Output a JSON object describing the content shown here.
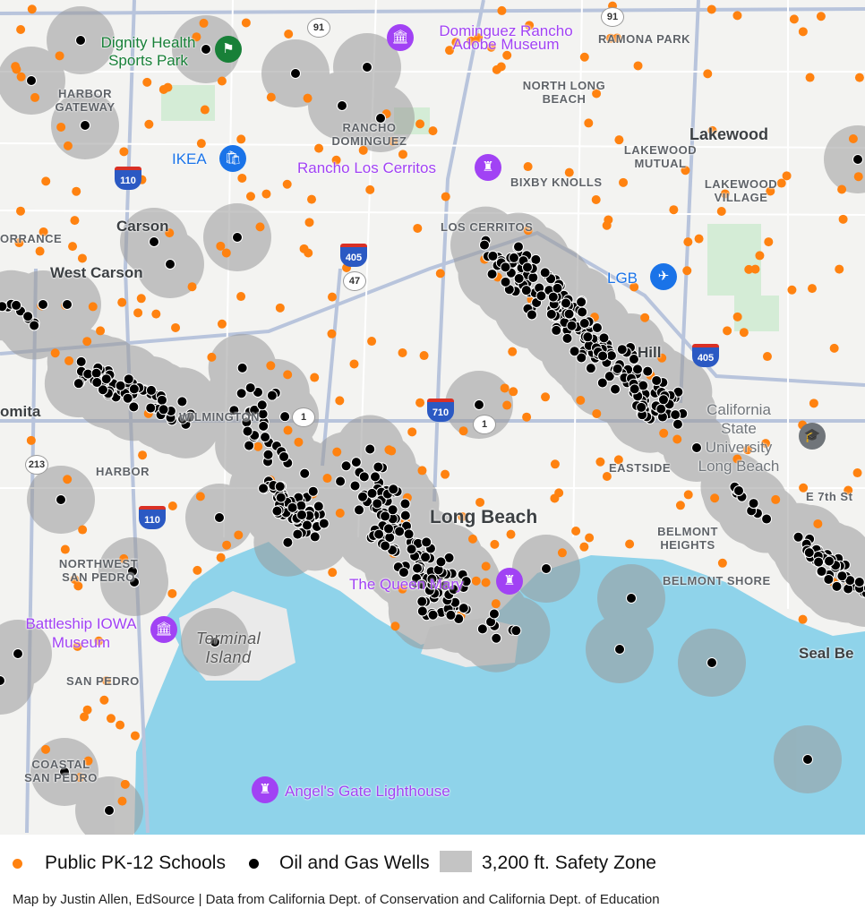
{
  "map": {
    "labels": [
      {
        "text": "Dignity Health Sports Park",
        "cls": "green"
      },
      {
        "text": "Dominguez Rancho Adobe Museum",
        "cls": "poi"
      },
      {
        "text": "RAMONA PARK",
        "cls": ""
      },
      {
        "text": "HARBOR GATEWAY",
        "cls": ""
      },
      {
        "text": "NORTH LONG BEACH",
        "cls": ""
      },
      {
        "text": "RANCHO DOMINGUEZ",
        "cls": ""
      },
      {
        "text": "Lakewood",
        "cls": "big"
      },
      {
        "text": "IKEA",
        "cls": "blue"
      },
      {
        "text": "Rancho Los Cerritos",
        "cls": "poi"
      },
      {
        "text": "LAKEWOOD MUTUAL",
        "cls": ""
      },
      {
        "text": "BIXBY KNOLLS",
        "cls": ""
      },
      {
        "text": "LAKEWOOD VILLAGE",
        "cls": ""
      },
      {
        "text": "Carson",
        "cls": "city"
      },
      {
        "text": "ORRANCE",
        "cls": ""
      },
      {
        "text": "LOS CERRITOS",
        "cls": ""
      },
      {
        "text": "West Carson",
        "cls": "city"
      },
      {
        "text": "LGB",
        "cls": "blue"
      },
      {
        "text": "Hill",
        "cls": "city"
      },
      {
        "text": "omita",
        "cls": "city"
      },
      {
        "text": "WILMINGTON",
        "cls": ""
      },
      {
        "text": "California State University Long Beach",
        "cls": "gray"
      },
      {
        "text": "HARBOR",
        "cls": ""
      },
      {
        "text": "EASTSIDE",
        "cls": ""
      },
      {
        "text": "E 7th St",
        "cls": ""
      },
      {
        "text": "Long Beach",
        "cls": "big"
      },
      {
        "text": "BELMONT HEIGHTS",
        "cls": ""
      },
      {
        "text": "NORTHWEST SAN PEDRO",
        "cls": ""
      },
      {
        "text": "The Queen Mary",
        "cls": "poi"
      },
      {
        "text": "BELMONT SHORE",
        "cls": ""
      },
      {
        "text": "Battleship IOWA Museum",
        "cls": "poi"
      },
      {
        "text": "Terminal Island",
        "cls": "ital"
      },
      {
        "text": "Seal Be",
        "cls": "city"
      },
      {
        "text": "SAN PEDRO",
        "cls": ""
      },
      {
        "text": "COASTAL SAN PEDRO",
        "cls": ""
      },
      {
        "text": "Angel's Gate Lighthouse",
        "cls": "poi"
      }
    ],
    "route_shields": [
      "91",
      "91",
      "110",
      "405",
      "47",
      "1",
      "710",
      "1",
      "405",
      "213",
      "110"
    ],
    "colors": {
      "land": "#f3f3f1",
      "water": "#8fd3ea",
      "road": "#c5cee0",
      "school": "#ff8210",
      "well": "#000000",
      "zone": "#9a9a9a"
    }
  },
  "legend": {
    "schools": "Public PK-12 Schools",
    "wells": "Oil and Gas Wells",
    "zone": "3,200 ft. Safety Zone"
  },
  "credit": "Map by Justin Allen, EdSource | Data from California Dept. of Conservation and California Dept. of Education"
}
